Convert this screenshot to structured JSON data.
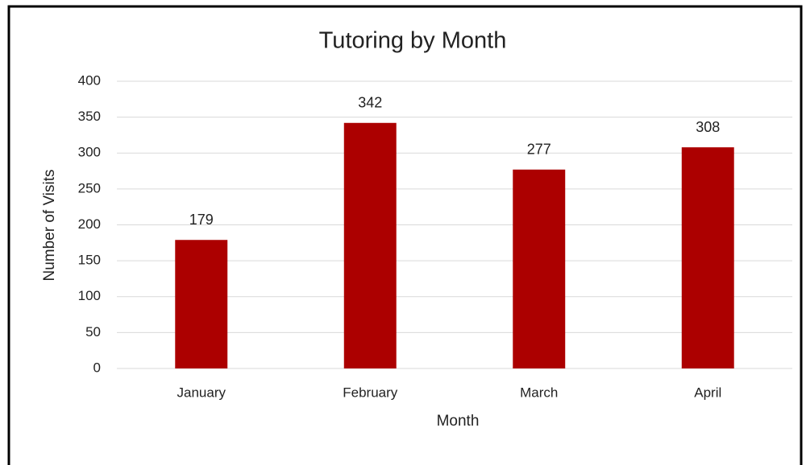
{
  "chart_data": {
    "type": "bar",
    "title": "Tutoring by Month",
    "x_label": "Month",
    "y_label": "Number of Visits",
    "categories": [
      "January",
      "February",
      "March",
      "April"
    ],
    "values": [
      179,
      342,
      277,
      308
    ],
    "color": "#ac0000",
    "ylim": [
      0,
      400
    ],
    "yticks": [
      0,
      50,
      100,
      150,
      200,
      250,
      300,
      350,
      400
    ],
    "grid": true,
    "data_labels": true
  }
}
